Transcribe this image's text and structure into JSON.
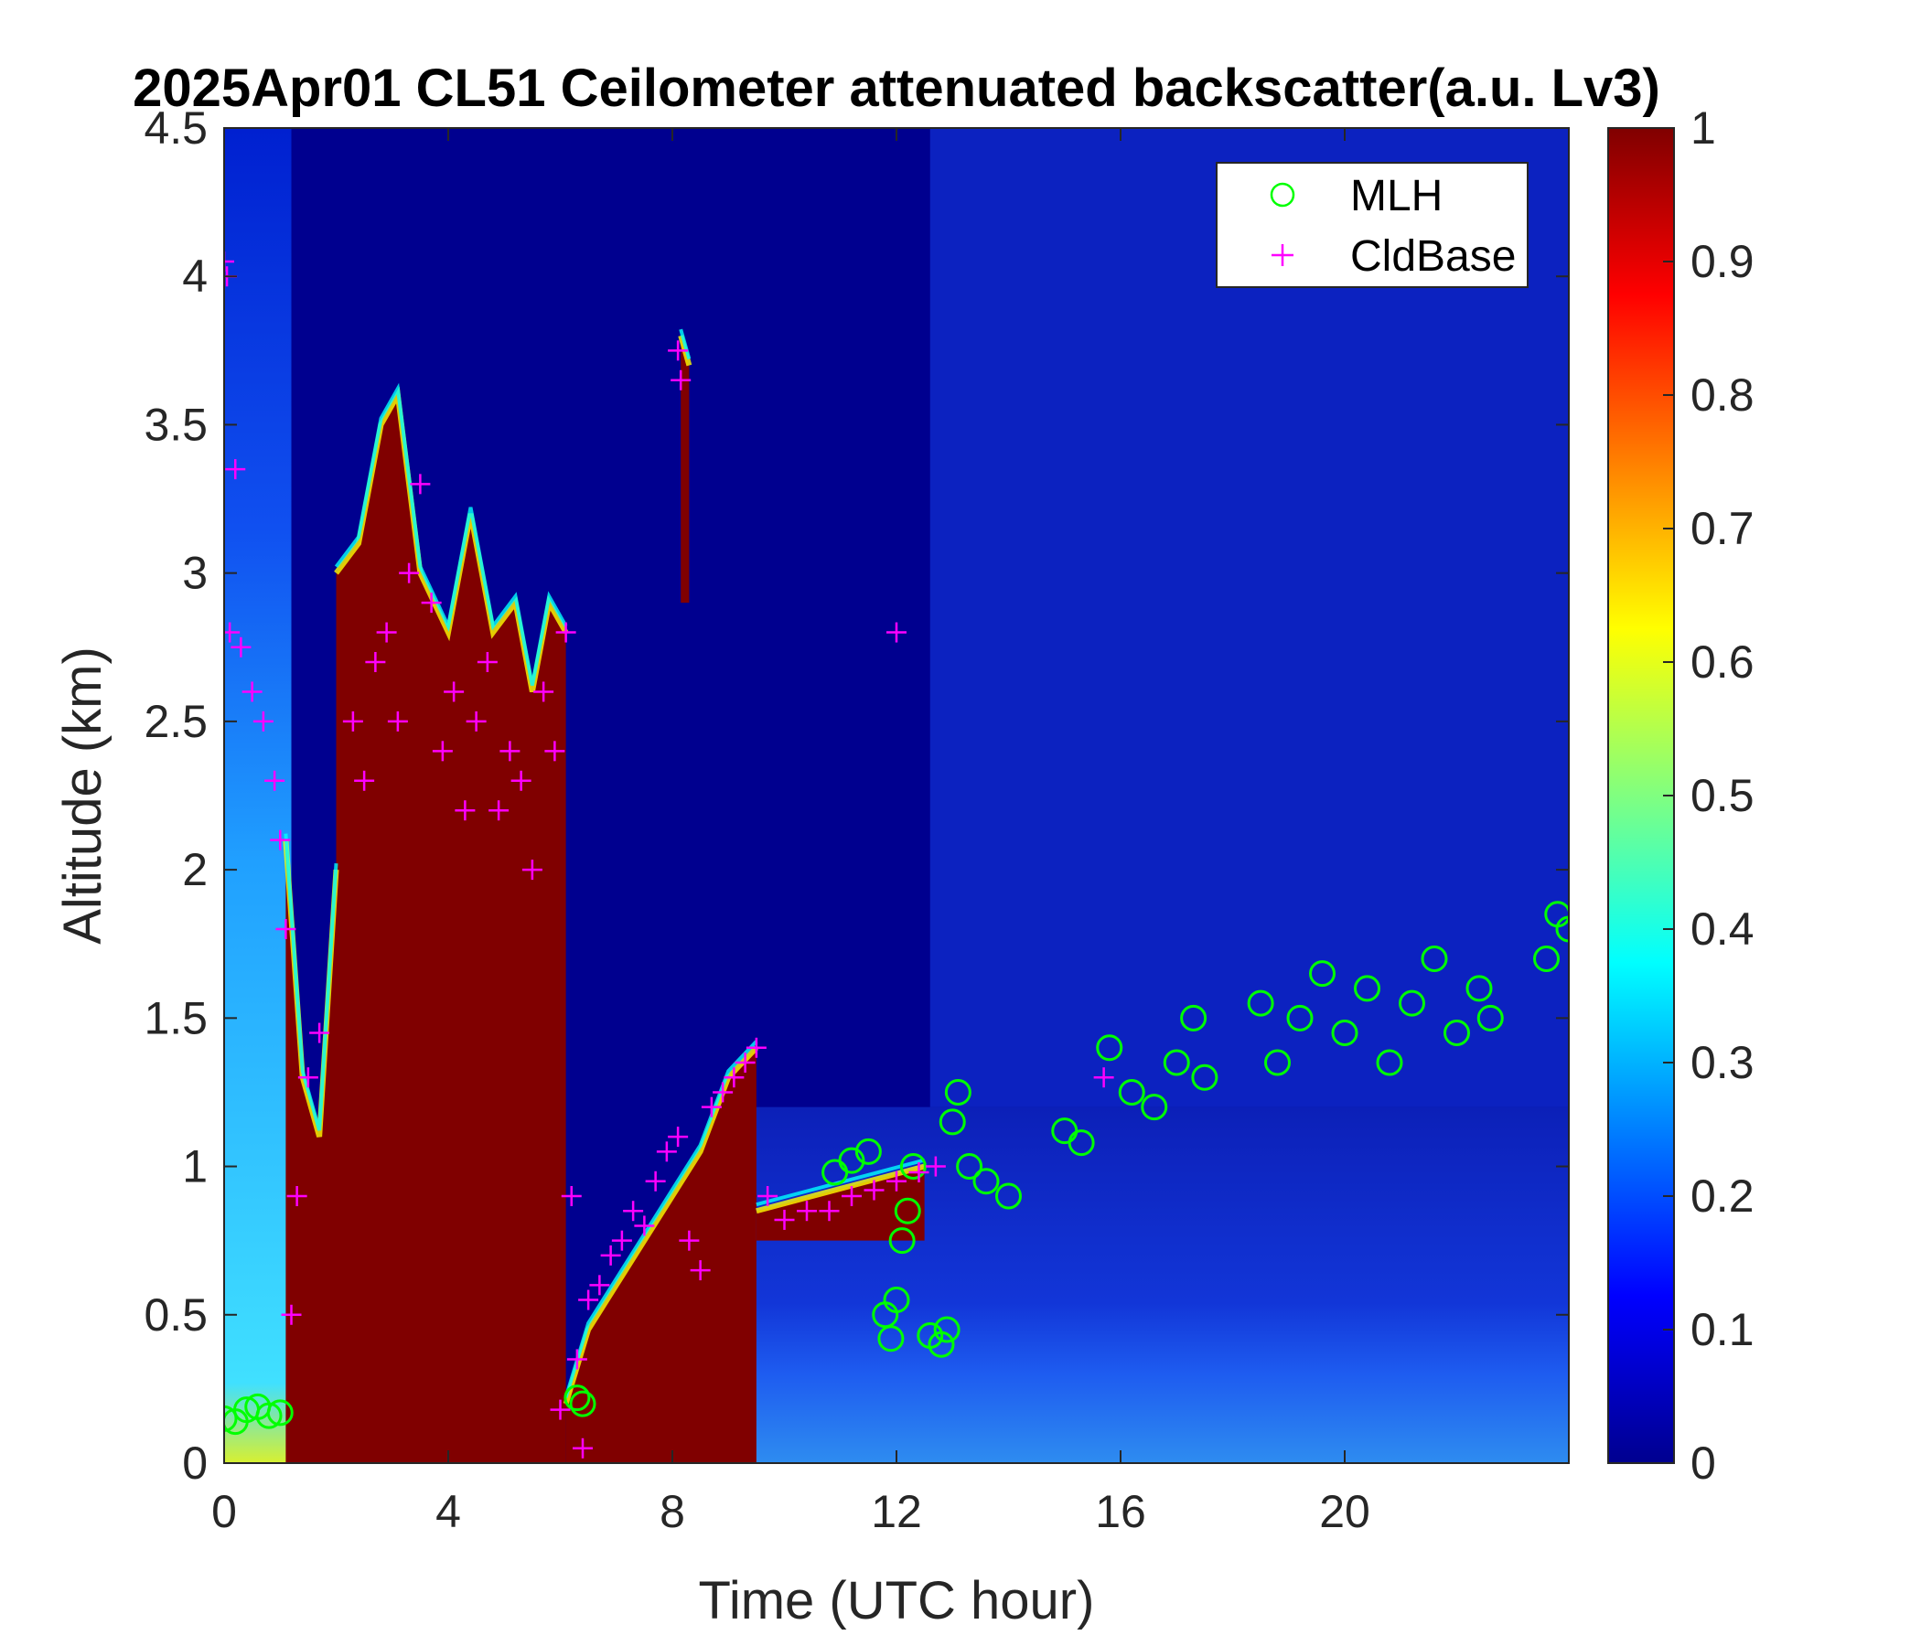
{
  "chart_data": {
    "type": "heatmap",
    "title": "2025Apr01 CL51 Ceilometer attenuated backscatter(a.u. Lv3)",
    "xlabel": "Time (UTC hour)",
    "ylabel": "Altitude (km)",
    "xlim": [
      0,
      24
    ],
    "ylim": [
      0,
      4.5
    ],
    "x_ticks": [
      "0",
      "4",
      "8",
      "12",
      "16",
      "20"
    ],
    "y_ticks": [
      "0",
      "0.5",
      "1",
      "1.5",
      "2",
      "2.5",
      "3",
      "3.5",
      "4",
      "4.5"
    ],
    "colorbar": {
      "colormap": "jet",
      "range": [
        0,
        1
      ],
      "ticks": [
        "0",
        "0.1",
        "0.2",
        "0.3",
        "0.4",
        "0.5",
        "0.6",
        "0.7",
        "0.8",
        "0.9",
        "1"
      ]
    },
    "legend": {
      "position": "top-right",
      "entries": [
        {
          "name": "MLH",
          "marker": "circle",
          "color": "#00ff00"
        },
        {
          "name": "CldBase",
          "marker": "plus",
          "color": "#ff00ff"
        }
      ]
    },
    "heatmap_regions": [
      {
        "x0": 2.0,
        "x1": 6.1,
        "y_bottom": 0,
        "top": [
          [
            2.0,
            3.0
          ],
          [
            2.4,
            3.1
          ],
          [
            2.8,
            3.5
          ],
          [
            3.1,
            3.6
          ],
          [
            3.5,
            3.0
          ],
          [
            4.0,
            2.8
          ],
          [
            4.4,
            3.2
          ],
          [
            4.8,
            2.8
          ],
          [
            5.2,
            2.9
          ],
          [
            5.5,
            2.6
          ],
          [
            5.8,
            2.9
          ],
          [
            6.1,
            2.8
          ]
        ],
        "value": 1.0
      },
      {
        "x0": 1.1,
        "x1": 2.0,
        "y_bottom": 0,
        "top": [
          [
            1.1,
            2.1
          ],
          [
            1.4,
            1.3
          ],
          [
            1.7,
            1.1
          ],
          [
            2.0,
            2.0
          ]
        ],
        "value": 1.0
      },
      {
        "x0": 6.1,
        "x1": 9.5,
        "y_bottom": 0,
        "top": [
          [
            6.1,
            0.2
          ],
          [
            6.5,
            0.45
          ],
          [
            7.0,
            0.6
          ],
          [
            7.5,
            0.75
          ],
          [
            8.0,
            0.9
          ],
          [
            8.5,
            1.05
          ],
          [
            9.0,
            1.3
          ],
          [
            9.5,
            1.4
          ]
        ],
        "value": 1.0
      },
      {
        "x0": 9.5,
        "x1": 12.5,
        "y_bottom": 0.75,
        "top": [
          [
            9.5,
            0.85
          ],
          [
            10.5,
            0.9
          ],
          [
            11.5,
            0.95
          ],
          [
            12.5,
            1.0
          ]
        ],
        "value": 1.0
      },
      {
        "x0": 8.15,
        "x1": 8.3,
        "y_bottom": 2.9,
        "top": [
          [
            8.15,
            3.8
          ],
          [
            8.3,
            3.7
          ]
        ],
        "value": 1.0
      }
    ],
    "series": [
      {
        "name": "MLH",
        "marker": "circle",
        "x": [
          0.0,
          0.2,
          0.4,
          0.6,
          0.8,
          1.0,
          6.3,
          6.4,
          10.9,
          11.2,
          11.5,
          11.8,
          11.9,
          12.0,
          12.1,
          12.2,
          12.3,
          12.6,
          12.8,
          12.9,
          13.0,
          13.1,
          13.3,
          13.6,
          14.0,
          15.0,
          15.3,
          15.8,
          16.2,
          16.6,
          17.0,
          17.3,
          17.5,
          18.5,
          18.8,
          19.2,
          19.6,
          20.0,
          20.4,
          20.8,
          21.2,
          21.6,
          22.0,
          22.4,
          22.6,
          23.6,
          23.8,
          24.0
        ],
        "y": [
          0.15,
          0.14,
          0.18,
          0.19,
          0.16,
          0.17,
          0.22,
          0.2,
          0.98,
          1.02,
          1.05,
          0.5,
          0.42,
          0.55,
          0.75,
          0.85,
          1.0,
          0.43,
          0.4,
          0.45,
          1.15,
          1.25,
          1.0,
          0.95,
          0.9,
          1.12,
          1.08,
          1.4,
          1.25,
          1.2,
          1.35,
          1.5,
          1.3,
          1.55,
          1.35,
          1.5,
          1.65,
          1.45,
          1.6,
          1.35,
          1.55,
          1.7,
          1.45,
          1.6,
          1.5,
          1.7,
          1.85,
          1.8
        ]
      },
      {
        "name": "CldBase",
        "marker": "plus",
        "x": [
          0.0,
          0.1,
          0.3,
          0.5,
          0.7,
          0.9,
          1.0,
          1.1,
          1.2,
          1.3,
          1.5,
          1.7,
          2.3,
          2.5,
          2.7,
          2.9,
          3.1,
          3.3,
          3.5,
          3.7,
          3.9,
          4.1,
          4.3,
          4.5,
          4.7,
          4.9,
          5.1,
          5.3,
          5.5,
          5.7,
          5.9,
          6.1,
          6.2,
          6.3,
          6.5,
          6.7,
          6.9,
          7.1,
          7.3,
          7.5,
          7.7,
          7.9,
          8.1,
          8.3,
          8.5,
          8.7,
          8.9,
          9.1,
          9.3,
          9.5,
          9.7,
          10.0,
          10.4,
          10.8,
          11.2,
          11.6,
          12.0,
          12.4,
          12.7,
          0.05,
          0.2,
          8.1,
          8.15,
          12.0,
          15.7,
          6.0,
          6.4
        ],
        "y": [
          4.05,
          2.8,
          2.75,
          2.6,
          2.5,
          2.3,
          2.1,
          1.8,
          0.5,
          0.9,
          1.3,
          1.45,
          2.5,
          2.3,
          2.7,
          2.8,
          2.5,
          3.0,
          3.3,
          2.9,
          2.4,
          2.6,
          2.2,
          2.5,
          2.7,
          2.2,
          2.4,
          2.3,
          2.0,
          2.6,
          2.4,
          2.8,
          0.9,
          0.35,
          0.55,
          0.6,
          0.7,
          0.75,
          0.85,
          0.8,
          0.95,
          1.05,
          1.1,
          0.75,
          0.65,
          1.2,
          1.25,
          1.3,
          1.35,
          1.4,
          0.9,
          0.82,
          0.85,
          0.85,
          0.9,
          0.92,
          0.95,
          0.98,
          1.0,
          4.0,
          3.35,
          3.75,
          3.65,
          2.8,
          1.3,
          0.18,
          0.05
        ]
      }
    ]
  }
}
